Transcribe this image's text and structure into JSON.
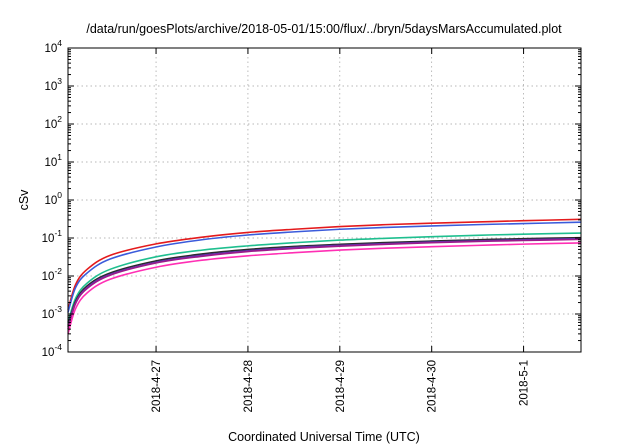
{
  "chart_data": {
    "type": "line",
    "title": "/data/run/goesPlots/archive/2018-05-01/15:00/flux/../bryn/5daysMarsAccumulated.plot",
    "xlabel": "Coordinated Universal Time (UTC)",
    "ylabel": "cSv",
    "x_scale": "time",
    "y_scale": "log",
    "xlim": [
      "2018-04-26T01:00",
      "2018-05-01T15:00"
    ],
    "ylim": [
      0.0001,
      10000
    ],
    "grid": true,
    "legend": "none",
    "x_ticks": [
      "2018-4-27",
      "2018-4-28",
      "2018-4-29",
      "2018-4-30",
      "2018-5-1"
    ],
    "y_ticks": [
      {
        "base": "10",
        "exp": "-4",
        "value": 0.0001
      },
      {
        "base": "10",
        "exp": "-3",
        "value": 0.001
      },
      {
        "base": "10",
        "exp": "-2",
        "value": 0.01
      },
      {
        "base": "10",
        "exp": "-1",
        "value": 0.1
      },
      {
        "base": "10",
        "exp": "0",
        "value": 1
      },
      {
        "base": "10",
        "exp": "1",
        "value": 10
      },
      {
        "base": "10",
        "exp": "2",
        "value": 100
      },
      {
        "base": "10",
        "exp": "3",
        "value": 1000
      },
      {
        "base": "10",
        "exp": "4",
        "value": 10000
      }
    ],
    "x": [
      "2018-04-26T01:00",
      "2018-04-26T03:00",
      "2018-04-26T06:00",
      "2018-04-26T12:00",
      "2018-04-27T00:00",
      "2018-04-27T12:00",
      "2018-04-28T00:00",
      "2018-04-28T12:00",
      "2018-04-29T00:00",
      "2018-04-29T12:00",
      "2018-04-30T00:00",
      "2018-04-30T12:00",
      "2018-05-01T00:00",
      "2018-05-01T15:00"
    ],
    "series": [
      {
        "color": "#e41a1c",
        "values": [
          0.0013,
          0.006,
          0.015,
          0.035,
          0.07,
          0.105,
          0.14,
          0.17,
          0.2,
          0.225,
          0.245,
          0.265,
          0.285,
          0.31
        ]
      },
      {
        "color": "#3b5bdb",
        "values": [
          0.0011,
          0.005,
          0.012,
          0.028,
          0.058,
          0.09,
          0.12,
          0.145,
          0.17,
          0.19,
          0.208,
          0.225,
          0.24,
          0.26
        ]
      },
      {
        "color": "#1fbf8f",
        "values": [
          0.0006,
          0.0026,
          0.0065,
          0.015,
          0.032,
          0.048,
          0.062,
          0.075,
          0.088,
          0.098,
          0.108,
          0.118,
          0.126,
          0.135
        ]
      },
      {
        "color": "#2b2b2b",
        "values": [
          0.0005,
          0.0022,
          0.0055,
          0.012,
          0.025,
          0.038,
          0.05,
          0.06,
          0.068,
          0.076,
          0.083,
          0.09,
          0.096,
          0.102
        ]
      },
      {
        "color": "#5e35b1",
        "values": [
          0.00045,
          0.002,
          0.005,
          0.011,
          0.023,
          0.035,
          0.046,
          0.056,
          0.064,
          0.071,
          0.078,
          0.084,
          0.09,
          0.096
        ]
      },
      {
        "color": "#9c1a8a",
        "values": [
          0.0004,
          0.0019,
          0.0047,
          0.0105,
          0.022,
          0.033,
          0.044,
          0.053,
          0.061,
          0.068,
          0.075,
          0.081,
          0.086,
          0.092
        ]
      },
      {
        "color": "#ff2fb4",
        "values": [
          0.0003,
          0.0014,
          0.0036,
          0.0082,
          0.017,
          0.026,
          0.034,
          0.041,
          0.048,
          0.054,
          0.059,
          0.064,
          0.069,
          0.074
        ]
      }
    ]
  }
}
